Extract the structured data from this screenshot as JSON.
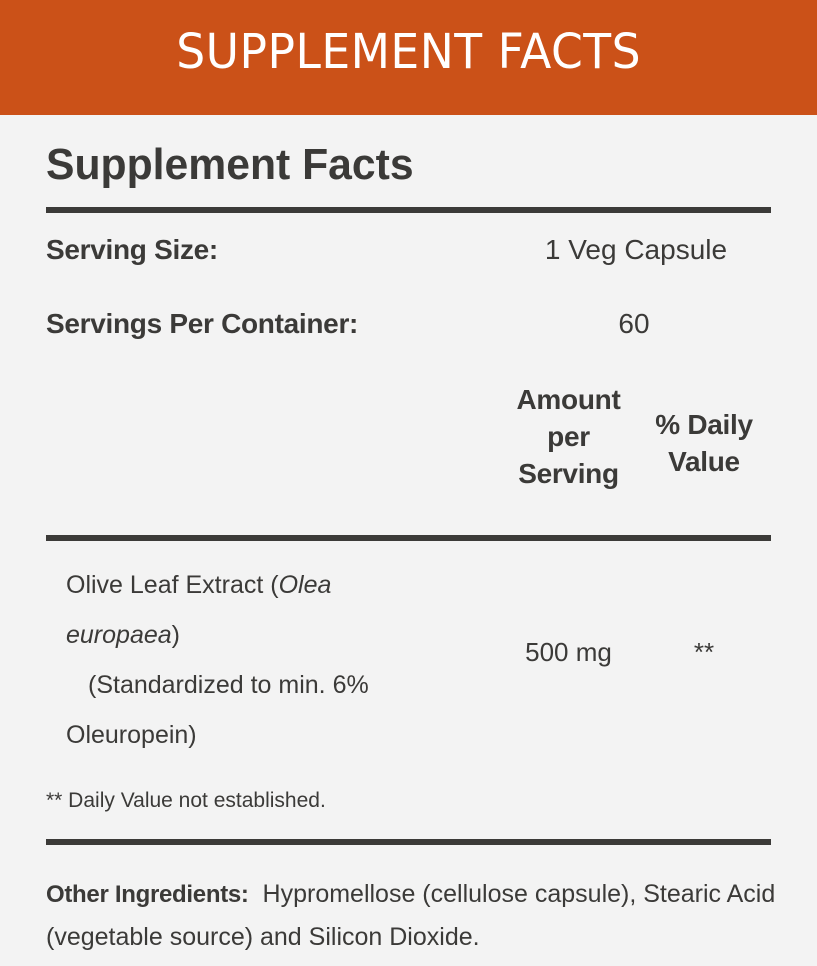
{
  "banner": {
    "title": "SUPPLEMENT FACTS",
    "background_color": "#cb5118"
  },
  "panel": {
    "title": "Supplement Facts",
    "serving_size": {
      "label": "Serving Size:",
      "value": "1 Veg Capsule"
    },
    "servings_per_container": {
      "label": "Servings Per Container:",
      "value": "60"
    },
    "columns": {
      "amount_header": [
        "Amount",
        "per",
        "Serving"
      ],
      "daily_value_header": [
        "% Daily",
        "Value"
      ]
    },
    "ingredients": [
      {
        "name_line1": "Olive Leaf Extract (",
        "name_latin_part1": "Olea",
        "name_latin_part2": "europaea",
        "name_close": ")",
        "standardization": "(Standardized to min. 6%",
        "standardization_line2": "Oleuropein)",
        "amount": "500 mg",
        "daily_value": "**"
      }
    ],
    "footnote": "** Daily Value not established.",
    "other_ingredients": {
      "label": "Other Ingredients:",
      "text": "Hypromellose (cellulose capsule), Stearic Acid (vegetable source) and Silicon Dioxide."
    }
  }
}
